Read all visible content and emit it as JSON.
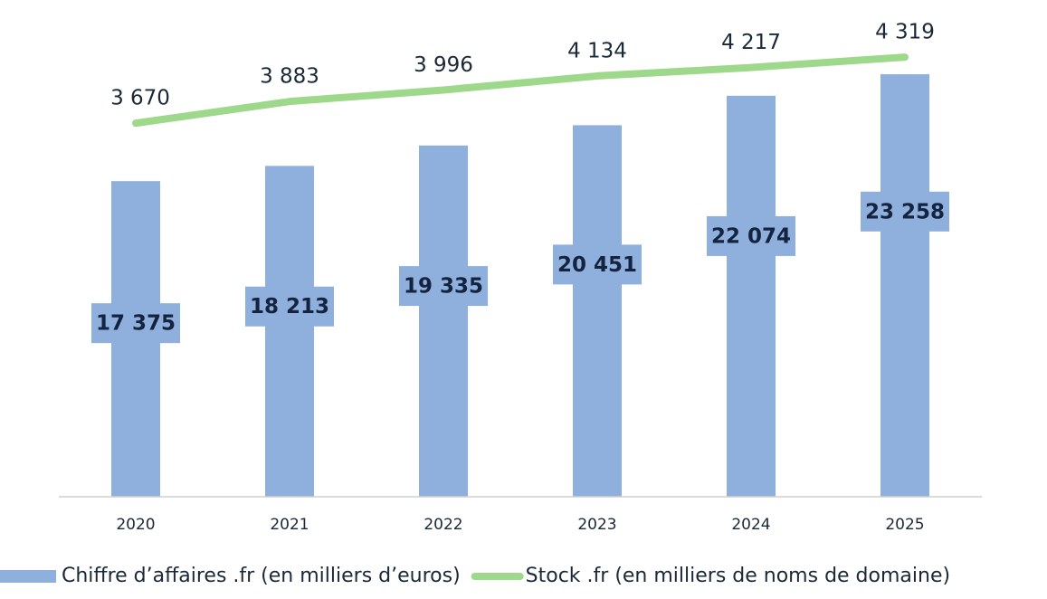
{
  "chart_data": {
    "type": "bar-line",
    "categories": [
      "2020",
      "2021",
      "2022",
      "2023",
      "2024",
      "2025"
    ],
    "series": [
      {
        "name": "Chiffre d’affaires .fr (en milliers d’euros)",
        "type": "bar",
        "color": "#8fb0dc",
        "values": [
          17375,
          18213,
          19335,
          20451,
          22074,
          23258
        ],
        "value_labels": [
          "17 375",
          "18 213",
          "19 335",
          "20 451",
          "22 074",
          "23 258"
        ]
      },
      {
        "name": "Stock .fr (en milliers de noms de domaine)",
        "type": "line",
        "color": "#9ed88a",
        "axis": "y2",
        "values": [
          3670,
          3883,
          3996,
          4134,
          4217,
          4319
        ],
        "value_labels": [
          "3 670",
          "3 883",
          "3 996",
          "4 134",
          "4 217",
          "4 319"
        ]
      }
    ],
    "ylim": [
      0,
      26000
    ],
    "y2lim": [
      0,
      4640
    ],
    "legend": "bottom"
  }
}
